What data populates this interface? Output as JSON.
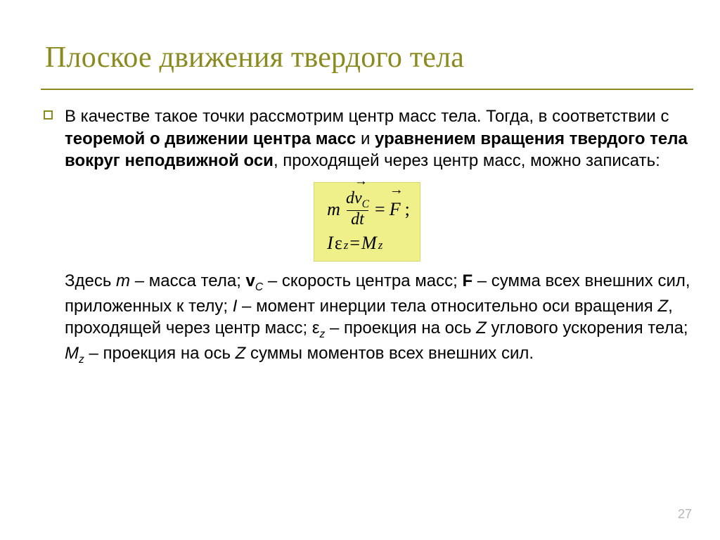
{
  "title": "Плоское движения твердого тела",
  "para1": {
    "pre": "В качестве такое точки рассмотрим центр масс тела. Тогда, в соответствии с ",
    "bold1": "теоремой о движении центра масс",
    "mid": " и ",
    "bold2": "уравнением вращения твердого тела вокруг неподвижной оси",
    "post": ", проходящей через центр масс, можно записать:"
  },
  "formula": {
    "m": "m",
    "d1": "d",
    "v": "v",
    "subC": "C",
    "dt": "dt",
    "eq": " = ",
    "F": "F",
    "semi": ";",
    "I": "I",
    "eps": "ε",
    "subz": "z",
    "eq2": " = ",
    "M": "M",
    "subz2": "z"
  },
  "para2": {
    "t0": "Здесь ",
    "m": "m",
    "t1": " – масса тела; ",
    "vC": "v",
    "vCsub": "C",
    "t2": " – скорость центра масс; ",
    "F": "F",
    "t3": " – сумма всех внешних сил, приложенных к телу; ",
    "I": "I",
    "t4": " – момент инерции тела относительно оси вращения ",
    "Z1": "Z",
    "t5": ", проходящей через центр масс; ",
    "eps": "ε",
    "epssub": "z",
    "t6": " – проекция на ось ",
    "Z2": "Z",
    "t7": " углового ускорения тела; ",
    "Mz": "M",
    "Mzsub": "z",
    "t8": " – проекция на ось ",
    "Z3": "Z",
    "t9": " суммы моментов всех внешних сил."
  },
  "slide_number": "27",
  "colors": {
    "accent": "#8a8a1f",
    "formula_bg": "#f0f08b",
    "text": "#000000",
    "page_num": "#b5b5b5"
  },
  "typography": {
    "title_fontsize": 42,
    "body_fontsize": 24,
    "formula_fontsize": 26,
    "title_font": "Times New Roman",
    "body_font": "Arial"
  }
}
